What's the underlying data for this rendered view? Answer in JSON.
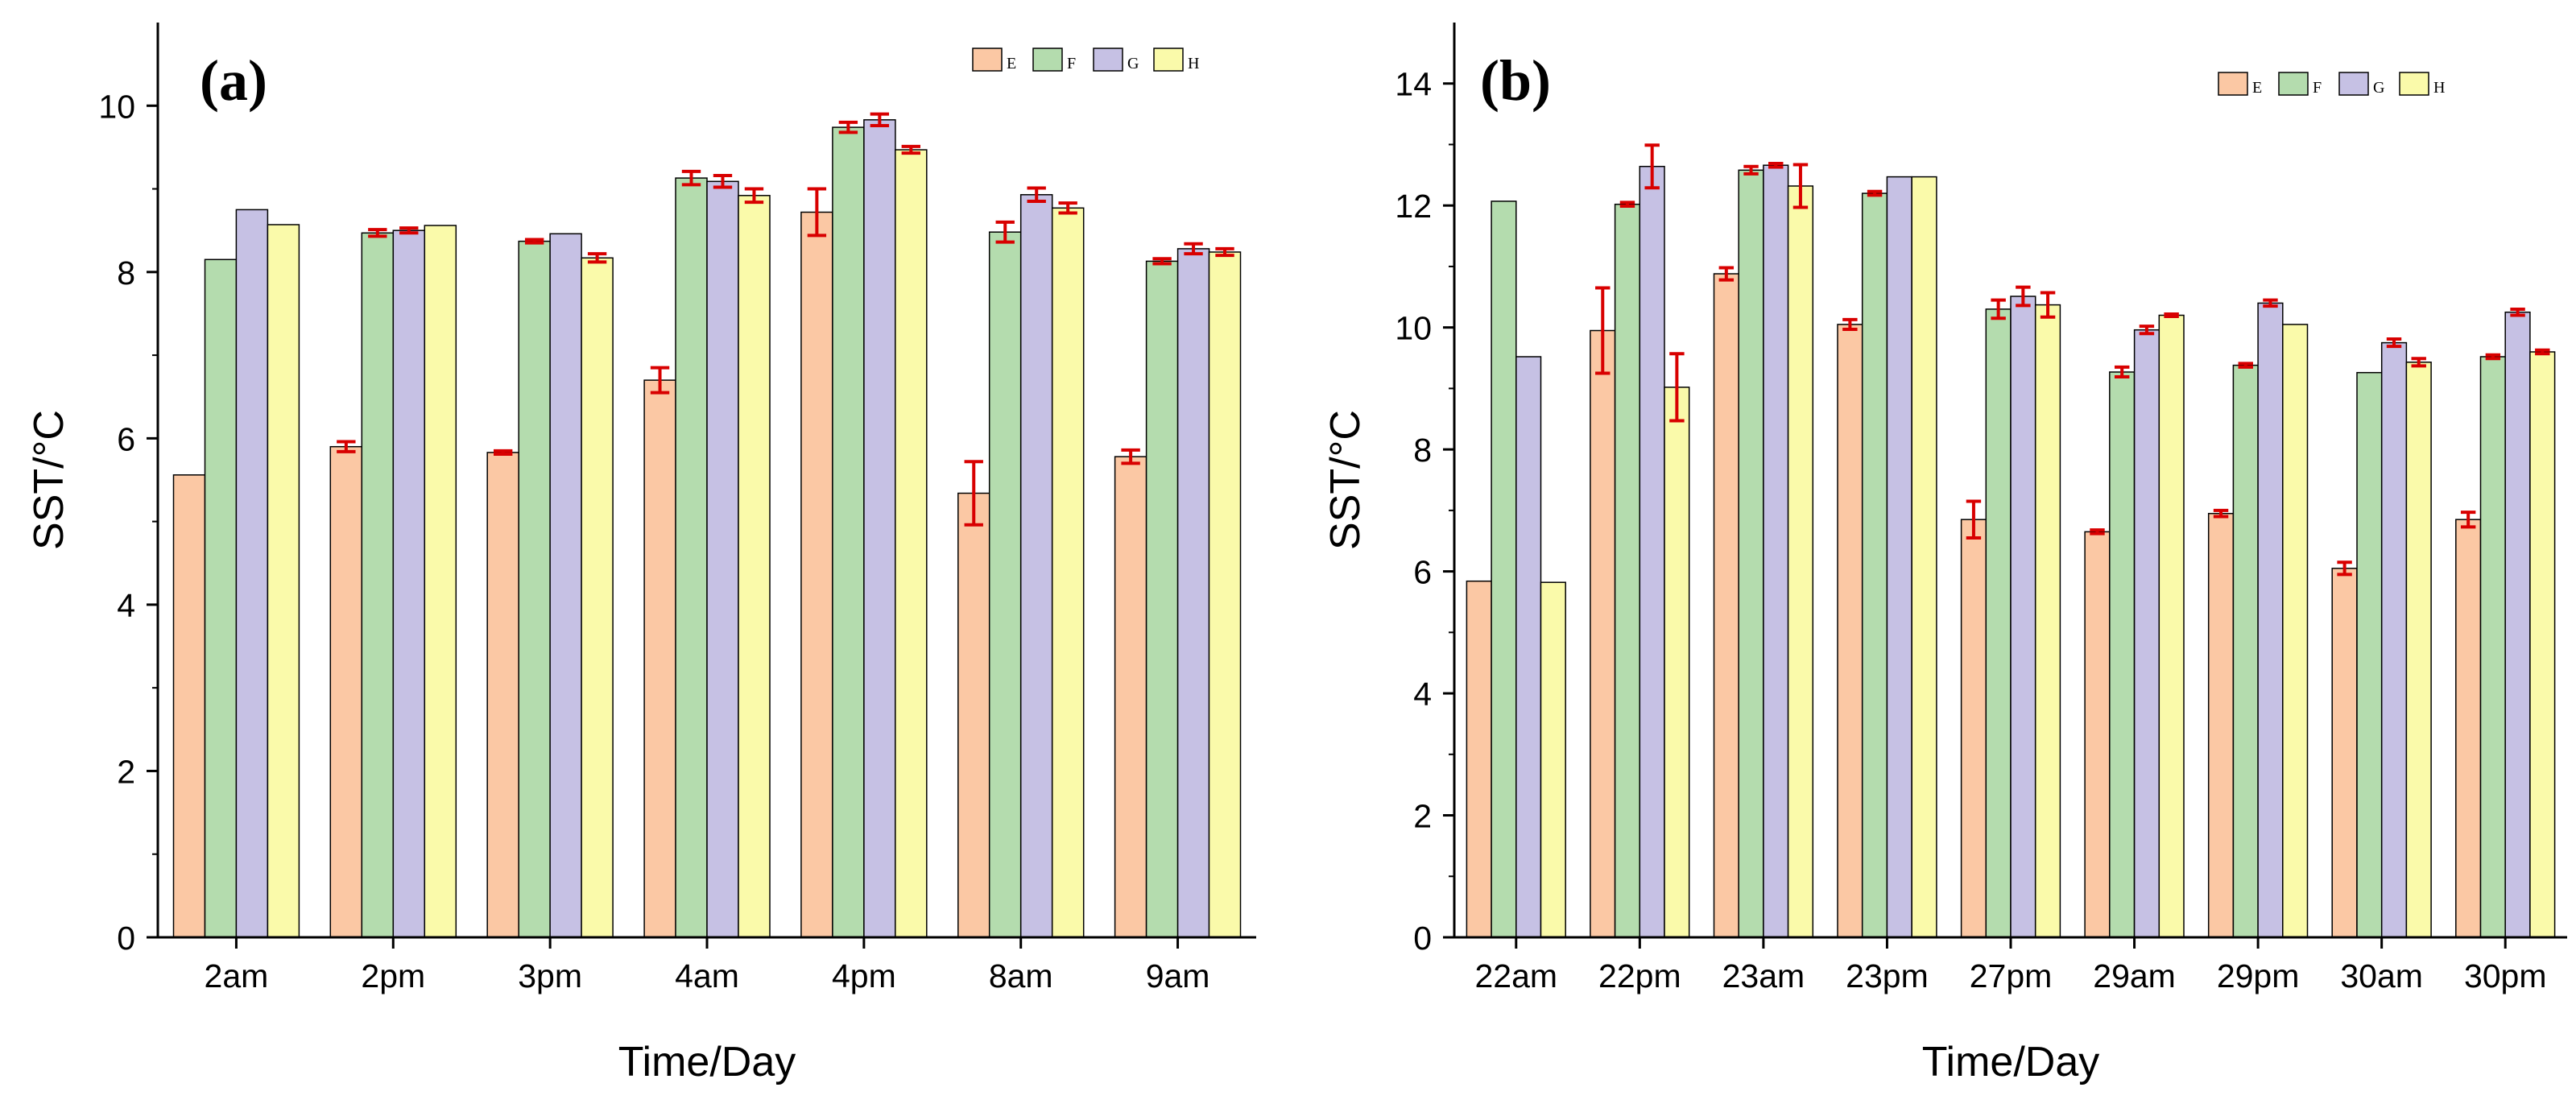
{
  "chart_data": [
    {
      "type": "bar",
      "panel_label": "(a)",
      "xlabel": "Time/Day",
      "ylabel": "SST/°C",
      "ylim": [
        0,
        11
      ],
      "yticks": [
        0,
        2,
        4,
        6,
        8,
        10
      ],
      "categories": [
        "2am",
        "2pm",
        "3pm",
        "4am",
        "4pm",
        "8am",
        "9am"
      ],
      "legend_position": "top-right",
      "series": [
        {
          "name": "E",
          "color": "#FBC8A4",
          "values": [
            5.56,
            5.9,
            5.83,
            6.7,
            8.72,
            5.34,
            5.78
          ],
          "errors": [
            0.0,
            0.06,
            0.02,
            0.15,
            0.28,
            0.38,
            0.08
          ]
        },
        {
          "name": "F",
          "color": "#B4DCAE",
          "values": [
            8.15,
            8.47,
            8.37,
            9.13,
            9.74,
            8.48,
            8.13
          ],
          "errors": [
            0.0,
            0.04,
            0.02,
            0.08,
            0.06,
            0.12,
            0.03
          ]
        },
        {
          "name": "G",
          "color": "#C6C1E4",
          "values": [
            8.75,
            8.5,
            8.46,
            9.09,
            9.83,
            8.93,
            8.28
          ],
          "errors": [
            0.0,
            0.03,
            0.0,
            0.07,
            0.07,
            0.08,
            0.06
          ]
        },
        {
          "name": "H",
          "color": "#FAFAAA",
          "values": [
            8.57,
            8.56,
            8.17,
            8.92,
            9.47,
            8.77,
            8.24
          ],
          "errors": [
            0.0,
            0.0,
            0.05,
            0.08,
            0.04,
            0.06,
            0.04
          ]
        }
      ]
    },
    {
      "type": "bar",
      "panel_label": "(b)",
      "xlabel": "Time/Day",
      "ylabel": "SST/°C",
      "ylim": [
        0,
        15
      ],
      "yticks": [
        0,
        2,
        4,
        6,
        8,
        10,
        12,
        14
      ],
      "categories": [
        "22am",
        "22pm",
        "23am",
        "23pm",
        "27pm",
        "29am",
        "29pm",
        "30am",
        "30pm"
      ],
      "legend_position": "top-right",
      "series": [
        {
          "name": "E",
          "color": "#FBC8A4",
          "values": [
            5.84,
            9.95,
            10.88,
            10.05,
            6.85,
            6.65,
            6.95,
            6.05,
            6.85
          ],
          "errors": [
            0.0,
            0.7,
            0.1,
            0.08,
            0.3,
            0.03,
            0.05,
            0.1,
            0.12
          ]
        },
        {
          "name": "F",
          "color": "#B4DCAE",
          "values": [
            12.07,
            12.02,
            12.58,
            12.2,
            10.3,
            9.27,
            9.38,
            9.26,
            9.52
          ],
          "errors": [
            0.0,
            0.03,
            0.06,
            0.03,
            0.15,
            0.08,
            0.03,
            0.0,
            0.03
          ]
        },
        {
          "name": "G",
          "color": "#C6C1E4",
          "values": [
            9.52,
            12.64,
            12.66,
            12.47,
            10.51,
            9.96,
            10.4,
            9.75,
            10.25
          ],
          "errors": [
            0.0,
            0.35,
            0.03,
            0.0,
            0.15,
            0.06,
            0.05,
            0.06,
            0.05
          ]
        },
        {
          "name": "H",
          "color": "#FAFAAA",
          "values": [
            5.82,
            9.02,
            12.32,
            12.47,
            10.37,
            10.2,
            10.05,
            9.43,
            9.6
          ],
          "errors": [
            0.0,
            0.55,
            0.35,
            0.0,
            0.2,
            0.02,
            0.0,
            0.06,
            0.03
          ]
        }
      ]
    }
  ]
}
